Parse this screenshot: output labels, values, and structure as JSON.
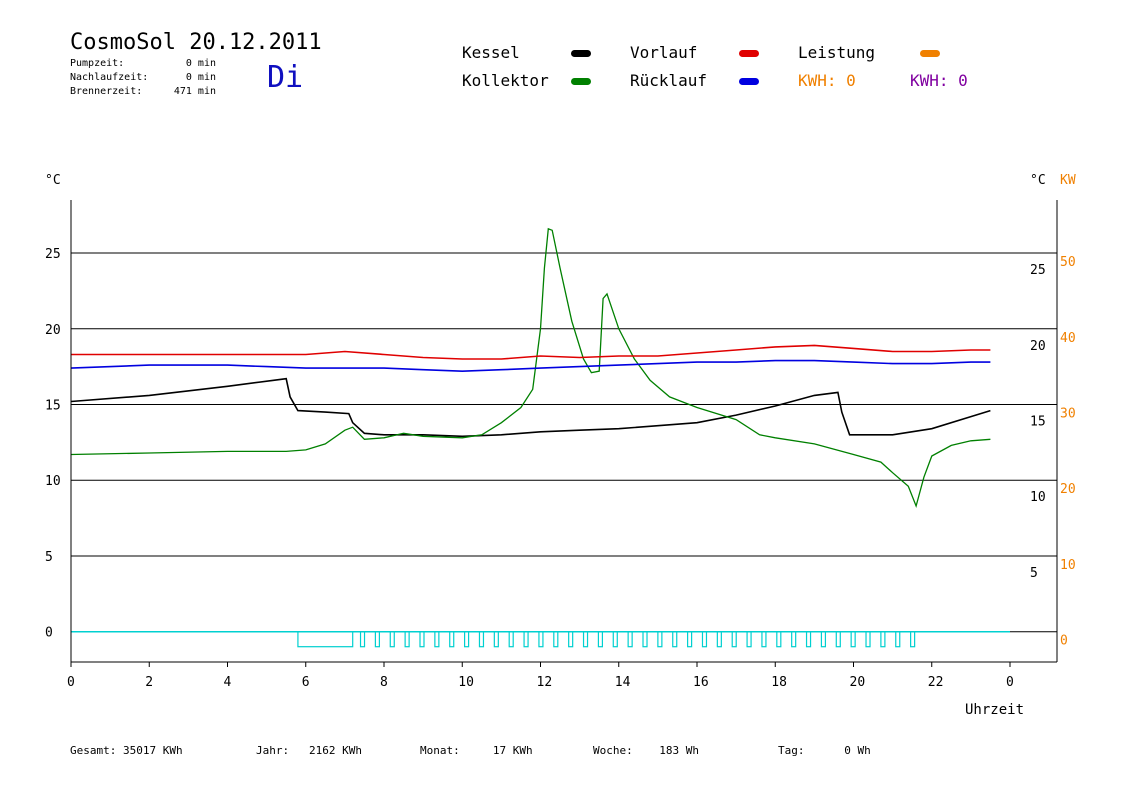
{
  "header": {
    "title": "CosmoSol 20.12.2011",
    "day": "Di",
    "pumpzeit_label": "Pumpzeit:",
    "pumpzeit_value": "0 min",
    "nachlauf_label": "Nachlaufzeit:",
    "nachlauf_value": "0 min",
    "brenner_label": "Brennerzeit:",
    "brenner_value": "471 min"
  },
  "legend": {
    "kessel": "Kessel",
    "kollektor": "Kollektor",
    "vorlauf": "Vorlauf",
    "ruecklauf": "Rücklauf",
    "leistung": "Leistung",
    "kwh1": "KWH: 0",
    "kwh2": "KWH: 0"
  },
  "colors": {
    "kessel": "#000000",
    "kollektor": "#008000",
    "vorlauf": "#e00000",
    "ruecklauf": "#0000e0",
    "leistung": "#f08000",
    "kwh2": "#8000a0",
    "pump": "#00d0d0"
  },
  "footer": {
    "gesamt_label": "Gesamt:",
    "gesamt_value": "35017 KWh",
    "jahr_label": "Jahr:",
    "jahr_value": "2162 KWh",
    "monat_label": "Monat:",
    "monat_value": "17 KWh",
    "woche_label": "Woche:",
    "woche_value": "183 Wh",
    "tag_label": "Tag:",
    "tag_value": "0 Wh"
  },
  "chart_data": {
    "type": "line",
    "xlabel": "Uhrzeit",
    "ylabel_left": "°C",
    "ylabel_right": "°C",
    "ylabel_right2": "KW",
    "xlim": [
      0,
      24
    ],
    "ylim": [
      -2,
      28.5
    ],
    "x_tick_labels": [
      "0",
      "2",
      "4",
      "6",
      "8",
      "10",
      "12",
      "14",
      "16",
      "18",
      "20",
      "22",
      "0"
    ],
    "y_ticks_left": [
      0,
      5,
      10,
      15,
      20,
      25
    ],
    "y_ticks_right_c": [
      5,
      10,
      15,
      20,
      25
    ],
    "y_ticks_right_kw": [
      0,
      10,
      20,
      30,
      40,
      50
    ],
    "grid": "horizontal",
    "series": [
      {
        "name": "Kessel",
        "color": "#000000",
        "points": [
          [
            0,
            15.2
          ],
          [
            2,
            15.6
          ],
          [
            4,
            16.2
          ],
          [
            5.5,
            16.7
          ],
          [
            5.6,
            15.5
          ],
          [
            5.8,
            14.6
          ],
          [
            6.5,
            14.5
          ],
          [
            7.1,
            14.4
          ],
          [
            7.2,
            13.8
          ],
          [
            7.5,
            13.1
          ],
          [
            8,
            13.0
          ],
          [
            9,
            13.0
          ],
          [
            10,
            12.9
          ],
          [
            11,
            13.0
          ],
          [
            12,
            13.2
          ],
          [
            13,
            13.3
          ],
          [
            14,
            13.4
          ],
          [
            15,
            13.6
          ],
          [
            16,
            13.8
          ],
          [
            17,
            14.3
          ],
          [
            18,
            14.9
          ],
          [
            19,
            15.6
          ],
          [
            19.6,
            15.8
          ],
          [
            19.7,
            14.5
          ],
          [
            19.9,
            13.0
          ],
          [
            21,
            13.0
          ],
          [
            22,
            13.4
          ],
          [
            23,
            14.2
          ],
          [
            23.5,
            14.6
          ]
        ]
      },
      {
        "name": "Kollektor",
        "color": "#008000",
        "points": [
          [
            0,
            11.7
          ],
          [
            2,
            11.8
          ],
          [
            4,
            11.9
          ],
          [
            5.5,
            11.9
          ],
          [
            6,
            12.0
          ],
          [
            6.5,
            12.4
          ],
          [
            7,
            13.3
          ],
          [
            7.2,
            13.5
          ],
          [
            7.5,
            12.7
          ],
          [
            8,
            12.8
          ],
          [
            8.5,
            13.1
          ],
          [
            9,
            12.9
          ],
          [
            10,
            12.8
          ],
          [
            10.5,
            13.0
          ],
          [
            11,
            13.8
          ],
          [
            11.5,
            14.8
          ],
          [
            11.8,
            16.0
          ],
          [
            12,
            20.0
          ],
          [
            12.1,
            24.0
          ],
          [
            12.2,
            26.6
          ],
          [
            12.3,
            26.5
          ],
          [
            12.5,
            24.0
          ],
          [
            12.8,
            20.5
          ],
          [
            13.1,
            18.0
          ],
          [
            13.3,
            17.1
          ],
          [
            13.5,
            17.2
          ],
          [
            13.6,
            22.0
          ],
          [
            13.7,
            22.3
          ],
          [
            14,
            20.0
          ],
          [
            14.4,
            18.0
          ],
          [
            14.8,
            16.6
          ],
          [
            15.3,
            15.5
          ],
          [
            16,
            14.8
          ],
          [
            17,
            14.0
          ],
          [
            17.6,
            13.0
          ],
          [
            18,
            12.8
          ],
          [
            19,
            12.4
          ],
          [
            20,
            11.7
          ],
          [
            20.7,
            11.2
          ],
          [
            21,
            10.5
          ],
          [
            21.4,
            9.6
          ],
          [
            21.6,
            8.3
          ],
          [
            21.8,
            10.2
          ],
          [
            22,
            11.6
          ],
          [
            22.5,
            12.3
          ],
          [
            23,
            12.6
          ],
          [
            23.5,
            12.7
          ]
        ]
      },
      {
        "name": "Vorlauf",
        "color": "#e00000",
        "points": [
          [
            0,
            18.3
          ],
          [
            2,
            18.3
          ],
          [
            4,
            18.3
          ],
          [
            5.5,
            18.3
          ],
          [
            6,
            18.3
          ],
          [
            7,
            18.5
          ],
          [
            8,
            18.3
          ],
          [
            9,
            18.1
          ],
          [
            10,
            18.0
          ],
          [
            11,
            18.0
          ],
          [
            12,
            18.2
          ],
          [
            13,
            18.1
          ],
          [
            14,
            18.2
          ],
          [
            15,
            18.2
          ],
          [
            16,
            18.4
          ],
          [
            17,
            18.6
          ],
          [
            18,
            18.8
          ],
          [
            19,
            18.9
          ],
          [
            20,
            18.7
          ],
          [
            21,
            18.5
          ],
          [
            22,
            18.5
          ],
          [
            23,
            18.6
          ],
          [
            23.5,
            18.6
          ]
        ]
      },
      {
        "name": "Rücklauf",
        "color": "#0000e0",
        "points": [
          [
            0,
            17.4
          ],
          [
            2,
            17.6
          ],
          [
            4,
            17.6
          ],
          [
            5,
            17.5
          ],
          [
            6,
            17.4
          ],
          [
            7,
            17.4
          ],
          [
            8,
            17.4
          ],
          [
            9,
            17.3
          ],
          [
            10,
            17.2
          ],
          [
            11,
            17.3
          ],
          [
            12,
            17.4
          ],
          [
            13,
            17.5
          ],
          [
            14,
            17.6
          ],
          [
            15,
            17.7
          ],
          [
            16,
            17.8
          ],
          [
            17,
            17.8
          ],
          [
            18,
            17.9
          ],
          [
            19,
            17.9
          ],
          [
            20,
            17.8
          ],
          [
            21,
            17.7
          ],
          [
            22,
            17.7
          ],
          [
            23,
            17.8
          ],
          [
            23.5,
            17.8
          ]
        ]
      }
    ]
  }
}
